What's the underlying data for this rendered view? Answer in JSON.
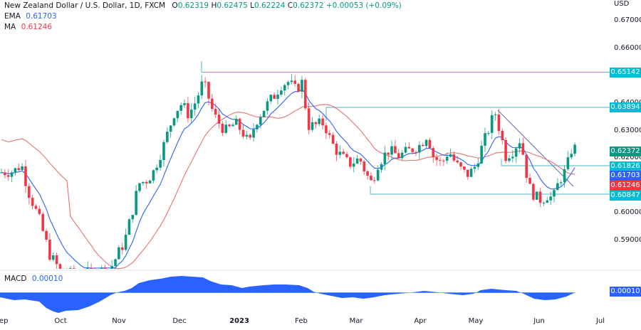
{
  "header": {
    "title": "New Zealand Dollar / U.S. Dollar, 1D, FXCM",
    "open_label": "O",
    "open": "0.62319",
    "high_label": "H",
    "high": "0.62475",
    "low_label": "L",
    "low": "0.62224",
    "close_label": "C",
    "close": "0.62372",
    "change": "+0.00053 (+0.09%)"
  },
  "indicators": {
    "ema": {
      "name": "EMA",
      "value": "0.61703",
      "color": "#2962ff"
    },
    "ma": {
      "name": "MA",
      "value": "0.61246",
      "color": "#f23645"
    },
    "macd": {
      "name": "MACD",
      "value": "0.00010",
      "color": "#2962ff"
    }
  },
  "price_axis": {
    "currency": "USD",
    "ticks": [
      "0.67000",
      "0.66000",
      "0.65000",
      "0.64000",
      "0.63000",
      "0.62000",
      "0.61000",
      "0.60000",
      "0.59000"
    ]
  },
  "price_tags": [
    {
      "value": "0.65142",
      "color": "#00bcd4",
      "kind": "resistance"
    },
    {
      "value": "0.63894",
      "color": "#00bcd4",
      "kind": "resistance"
    },
    {
      "value": "0.62372",
      "color": "#089981",
      "kind": "last-price"
    },
    {
      "value": "0.61826",
      "color": "#00bcd4",
      "kind": "level"
    },
    {
      "value": "0.61703",
      "color": "#2962ff",
      "kind": "ema"
    },
    {
      "value": "0.61246",
      "color": "#f23645",
      "kind": "ma"
    },
    {
      "value": "0.60847",
      "color": "#00bcd4",
      "kind": "support"
    }
  ],
  "macd_tag": {
    "value": "0.00010",
    "color": "#2962ff"
  },
  "time_axis": {
    "labels": [
      "Sep",
      "Oct",
      "Nov",
      "Dec",
      "2023",
      "Feb",
      "Mar",
      "Apr",
      "May",
      "Jun",
      "Jul"
    ]
  },
  "colors": {
    "up": "#089981",
    "down": "#f23645",
    "ema": "#2962ff",
    "ma": "#e57373",
    "levels": "#4fb6c4",
    "trendline": "#5d6fa8",
    "macd": "#2962ff"
  },
  "chart_data": {
    "type": "candlestick",
    "title": "New Zealand Dollar / U.S. Dollar, 1D, FXCM",
    "ylabel": "USD",
    "ylim": [
      0.585,
      0.672
    ],
    "x_labels": [
      "Sep",
      "Oct",
      "Nov",
      "Dec",
      "2023",
      "Feb",
      "Mar",
      "Apr",
      "May",
      "Jun",
      "Jul"
    ],
    "last_ohlc": {
      "open": 0.62319,
      "high": 0.62475,
      "low": 0.62224,
      "close": 0.62372,
      "change": 0.00053,
      "change_pct": 0.09
    },
    "horizontal_levels": [
      0.65142,
      0.63894,
      0.61826,
      0.60847
    ],
    "overlays": [
      {
        "name": "EMA",
        "last": 0.61703
      },
      {
        "name": "MA",
        "last": 0.61246
      }
    ],
    "close_path_approx": [
      {
        "x": "Sep",
        "y": 0.615
      },
      {
        "x": "late Sep",
        "y": 0.606
      },
      {
        "x": "Oct",
        "y": 0.57
      },
      {
        "x": "Nov",
        "y": 0.588
      },
      {
        "x": "late Nov",
        "y": 0.624
      },
      {
        "x": "Dec",
        "y": 0.635
      },
      {
        "x": "mid Dec",
        "y": 0.645
      },
      {
        "x": "late Dec",
        "y": 0.63
      },
      {
        "x": "2023",
        "y": 0.635
      },
      {
        "x": "mid Jan",
        "y": 0.645
      },
      {
        "x": "late Jan",
        "y": 0.649
      },
      {
        "x": "Feb",
        "y": 0.631
      },
      {
        "x": "mid Feb",
        "y": 0.625
      },
      {
        "x": "Mar",
        "y": 0.609
      },
      {
        "x": "mid Mar",
        "y": 0.622
      },
      {
        "x": "Apr",
        "y": 0.628
      },
      {
        "x": "mid Apr",
        "y": 0.618
      },
      {
        "x": "May",
        "y": 0.624
      },
      {
        "x": "mid May",
        "y": 0.638
      },
      {
        "x": "late May",
        "y": 0.607
      },
      {
        "x": "Jun",
        "y": 0.606
      },
      {
        "x": "mid Jun",
        "y": 0.6237
      }
    ],
    "macd": {
      "type": "area",
      "last": 0.0001,
      "shape_notes": "negative Sep-Oct trough, crosses zero at Nov, positive peak Dec, declining to zero by Feb, small negative Mar, small positive Apr and mid-May, negative late May/early Jun, back to ~0 mid Jun"
    }
  }
}
